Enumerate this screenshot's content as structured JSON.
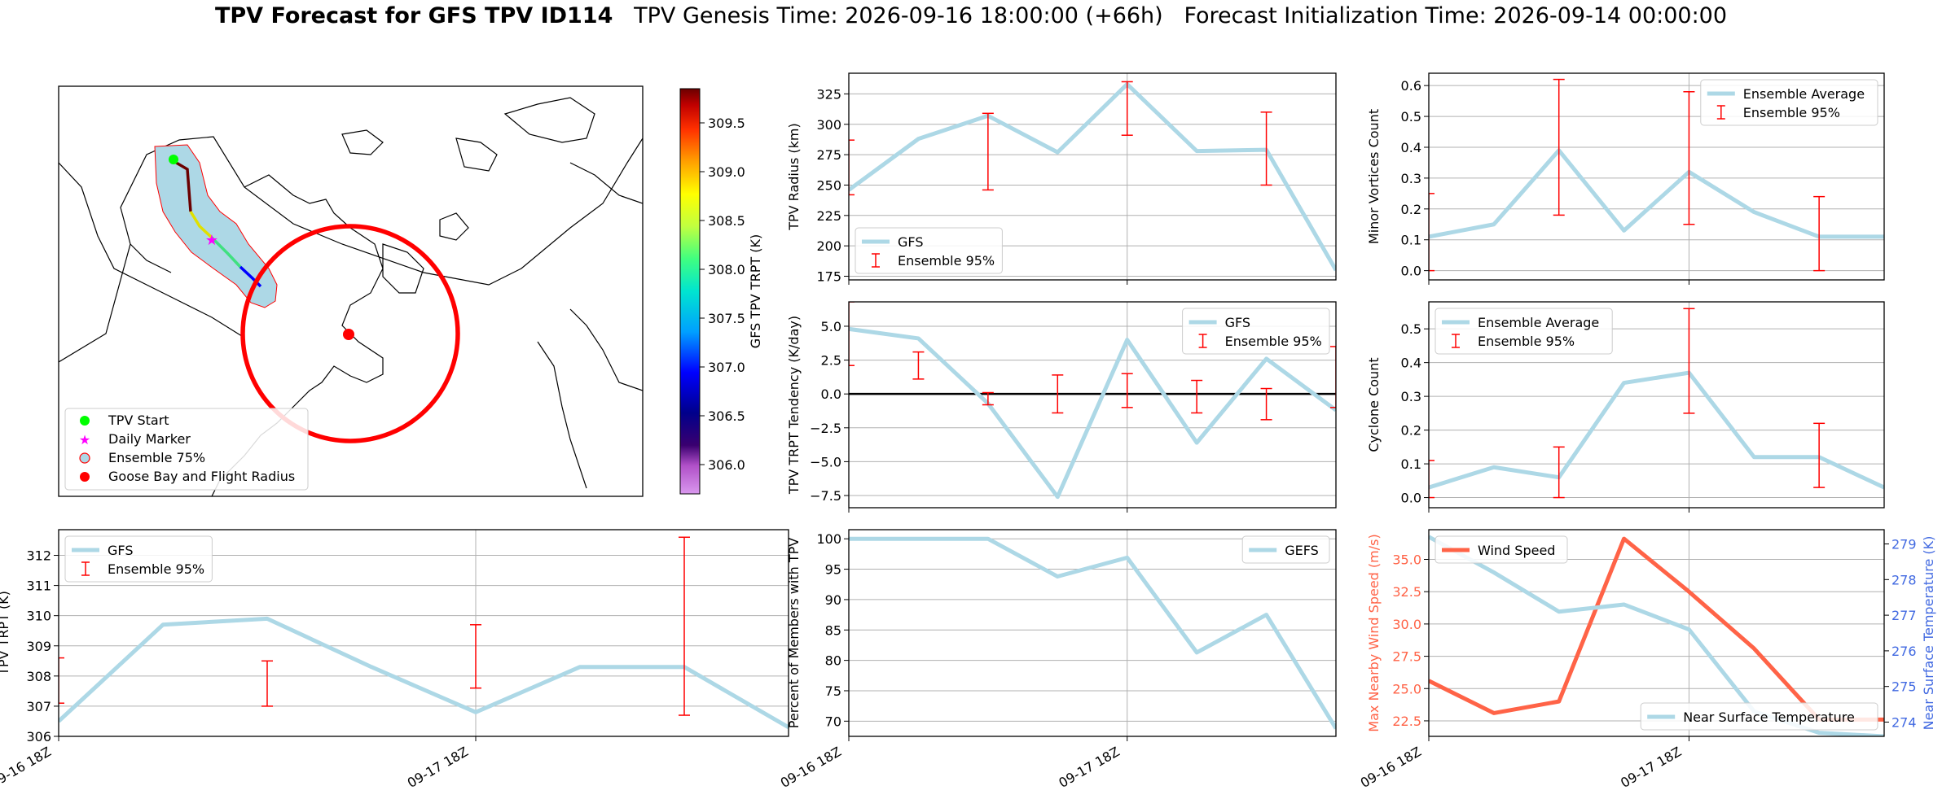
{
  "title": {
    "main": "TPV Forecast for GFS TPV ID114",
    "genesis": "TPV Genesis Time: 2026-09-16 18:00:00 (+66h)",
    "init": "Forecast Initialization Time: 2026-09-14 00:00:00"
  },
  "colors": {
    "ensemble_line": "#add8e6",
    "errorbar": "#ff0000",
    "wind": "#ff6347",
    "temp_axis": "#4169e1",
    "zero_line": "#000000"
  },
  "map": {
    "colorbar_label": "GFS TPV TRPT (K)",
    "colorbar_range": [
      305.7,
      309.85
    ],
    "colorbar_ticks": [
      "306.0",
      "306.5",
      "307.0",
      "307.5",
      "308.0",
      "308.5",
      "309.0",
      "309.5"
    ],
    "legend": [
      {
        "label": "TPV Start",
        "icon": "green-dot-icon",
        "color": "#00ff00"
      },
      {
        "label": "Daily Marker",
        "icon": "magenta-star-icon",
        "color": "#ff00ff"
      },
      {
        "label": "Ensemble 75%",
        "icon": "ensemble-patch-icon",
        "color": "#add8e6"
      },
      {
        "label": "Goose Bay and Flight Radius",
        "icon": "red-dot-icon",
        "color": "#ff0000"
      }
    ]
  },
  "chart_data": [
    {
      "id": "radius",
      "type": "line",
      "ylabel": "TPV Radius (km)",
      "x_ticks": [],
      "ylim": [
        172,
        342
      ],
      "y_ticks": [
        175,
        200,
        225,
        250,
        275,
        300,
        325
      ],
      "legend": {
        "position": "lower-left",
        "entries": [
          "GFS",
          "Ensemble 95%"
        ]
      },
      "series": [
        {
          "name": "GFS",
          "x": [
            0,
            1,
            2,
            3,
            4,
            5,
            6,
            7
          ],
          "values": [
            246,
            288,
            307,
            277,
            333,
            278,
            279,
            180
          ]
        }
      ],
      "errorbars": [
        {
          "x": 0,
          "low": 242,
          "high": 287
        },
        {
          "x": 2,
          "low": 246,
          "high": 309
        },
        {
          "x": 4,
          "low": 291,
          "high": 335
        },
        {
          "x": 6,
          "low": 250,
          "high": 310
        }
      ]
    },
    {
      "id": "minor",
      "type": "line",
      "ylabel": "Minor Vortices Count",
      "x_ticks": [],
      "ylim": [
        -0.03,
        0.64
      ],
      "y_ticks": [
        "0.0",
        "0.1",
        "0.2",
        "0.3",
        "0.4",
        "0.5",
        "0.6"
      ],
      "legend": {
        "position": "upper-right",
        "entries": [
          "Ensemble Average",
          "Ensemble 95%"
        ]
      },
      "series": [
        {
          "name": "Ensemble Average",
          "x": [
            0,
            1,
            2,
            3,
            4,
            5,
            6,
            7
          ],
          "values": [
            0.11,
            0.15,
            0.39,
            0.13,
            0.32,
            0.19,
            0.11,
            0.11
          ]
        }
      ],
      "errorbars": [
        {
          "x": 0,
          "low": 0.0,
          "high": 0.25
        },
        {
          "x": 2,
          "low": 0.18,
          "high": 0.62
        },
        {
          "x": 4,
          "low": 0.15,
          "high": 0.58
        },
        {
          "x": 6,
          "low": 0.0,
          "high": 0.24
        }
      ]
    },
    {
      "id": "tendency",
      "type": "line",
      "ylabel": "TPV TRPT Tendency (K/day)",
      "x_ticks": [],
      "ylim": [
        -8.4,
        6.8
      ],
      "y_ticks": [
        "−7.5",
        "−5.0",
        "−2.5",
        "0.0",
        "2.5",
        "5.0"
      ],
      "zero_line": true,
      "legend": {
        "position": "upper-right",
        "entries": [
          "GFS",
          "Ensemble 95%"
        ]
      },
      "series": [
        {
          "name": "GFS",
          "x": [
            0,
            1,
            2,
            3,
            4,
            5,
            6,
            7
          ],
          "values": [
            4.8,
            4.1,
            -0.7,
            -7.6,
            4.0,
            -3.6,
            2.6,
            -1.2
          ]
        }
      ],
      "errorbars": [
        {
          "x": 0,
          "low": 2.1,
          "high": 6.8
        },
        {
          "x": 1,
          "low": 1.1,
          "high": 3.1
        },
        {
          "x": 2,
          "low": -0.8,
          "high": 0.1
        },
        {
          "x": 3,
          "low": -1.4,
          "high": 1.4
        },
        {
          "x": 4,
          "low": -1.0,
          "high": 1.5
        },
        {
          "x": 5,
          "low": -1.4,
          "high": 1.0
        },
        {
          "x": 6,
          "low": -1.9,
          "high": 0.4
        },
        {
          "x": 7,
          "low": -1.0,
          "high": 3.5
        }
      ]
    },
    {
      "id": "cyclone",
      "type": "line",
      "ylabel": "Cyclone Count",
      "x_ticks": [],
      "ylim": [
        -0.03,
        0.58
      ],
      "y_ticks": [
        "0.0",
        "0.1",
        "0.2",
        "0.3",
        "0.4",
        "0.5"
      ],
      "legend": {
        "position": "upper-left",
        "entries": [
          "Ensemble Average",
          "Ensemble 95%"
        ]
      },
      "series": [
        {
          "name": "Ensemble Average",
          "x": [
            0,
            1,
            2,
            3,
            4,
            5,
            6,
            7
          ],
          "values": [
            0.03,
            0.09,
            0.06,
            0.34,
            0.37,
            0.12,
            0.12,
            0.03
          ]
        }
      ],
      "errorbars": [
        {
          "x": 0,
          "low": 0.0,
          "high": 0.11
        },
        {
          "x": 2,
          "low": 0.0,
          "high": 0.15
        },
        {
          "x": 4,
          "low": 0.25,
          "high": 0.56
        },
        {
          "x": 6,
          "low": 0.03,
          "high": 0.22
        }
      ]
    },
    {
      "id": "trpt",
      "type": "line",
      "ylabel": "TPV TRPT (K)",
      "x_ticks": [
        "09-16 18Z",
        "09-17 18Z"
      ],
      "ylim": [
        306.0,
        312.85
      ],
      "y_ticks": [
        306,
        307,
        308,
        309,
        310,
        311,
        312
      ],
      "legend": {
        "position": "upper-left",
        "entries": [
          "GFS",
          "Ensemble 95%"
        ]
      },
      "series": [
        {
          "name": "GFS",
          "x": [
            0,
            1,
            2,
            3,
            4,
            5,
            6,
            7
          ],
          "values": [
            306.5,
            309.7,
            309.9,
            308.3,
            306.8,
            308.3,
            308.3,
            306.3
          ]
        }
      ],
      "errorbars": [
        {
          "x": 0,
          "low": 307.1,
          "high": 308.6
        },
        {
          "x": 2,
          "low": 307.0,
          "high": 308.5
        },
        {
          "x": 4,
          "low": 307.6,
          "high": 309.7
        },
        {
          "x": 6,
          "low": 306.7,
          "high": 312.6
        }
      ]
    },
    {
      "id": "members",
      "type": "line",
      "ylabel": "Percent of Members with TPV",
      "x_ticks": [
        "09-16 18Z",
        "09-17 18Z"
      ],
      "ylim": [
        67.5,
        101.5
      ],
      "y_ticks": [
        70,
        75,
        80,
        85,
        90,
        95,
        100
      ],
      "legend": {
        "position": "upper-right",
        "entries": [
          "GEFS"
        ]
      },
      "series": [
        {
          "name": "GEFS",
          "x": [
            0,
            1,
            2,
            3,
            4,
            5,
            6,
            7
          ],
          "values": [
            100,
            100,
            100,
            93.8,
            96.9,
            81.3,
            87.5,
            68.8
          ]
        }
      ],
      "errorbars": []
    },
    {
      "id": "wind",
      "type": "line",
      "ylabel": "Max Nearby Wind Speed (m/s)",
      "ylabel_right": "Near Surface Temperature (K)",
      "x_ticks": [
        "09-16 18Z",
        "09-17 18Z"
      ],
      "ylim": [
        21.3,
        37.3
      ],
      "y_ticks": [
        "22.5",
        "25.0",
        "27.5",
        "30.0",
        "32.5",
        "35.0"
      ],
      "ylim_right": [
        273.6,
        279.4
      ],
      "y_ticks_right": [
        274,
        275,
        276,
        277,
        278,
        279
      ],
      "legend": {
        "position": "upper-left",
        "entries": [
          "Wind Speed"
        ]
      },
      "legend_right": {
        "position": "lower-right",
        "entries": [
          "Near Surface Temperature"
        ]
      },
      "series": [
        {
          "name": "Wind Speed",
          "axis": "left",
          "x": [
            0,
            1,
            2,
            3,
            4,
            5,
            6,
            7
          ],
          "values": [
            25.6,
            23.1,
            24.0,
            36.6,
            32.5,
            28.1,
            22.6,
            22.6
          ]
        },
        {
          "name": "Near Surface Temperature",
          "axis": "right",
          "x": [
            0,
            1,
            2,
            3,
            4,
            5,
            6,
            7
          ],
          "values": [
            279.2,
            278.2,
            277.1,
            277.3,
            276.6,
            274.3,
            273.7,
            273.6
          ]
        }
      ],
      "errorbars": []
    }
  ]
}
